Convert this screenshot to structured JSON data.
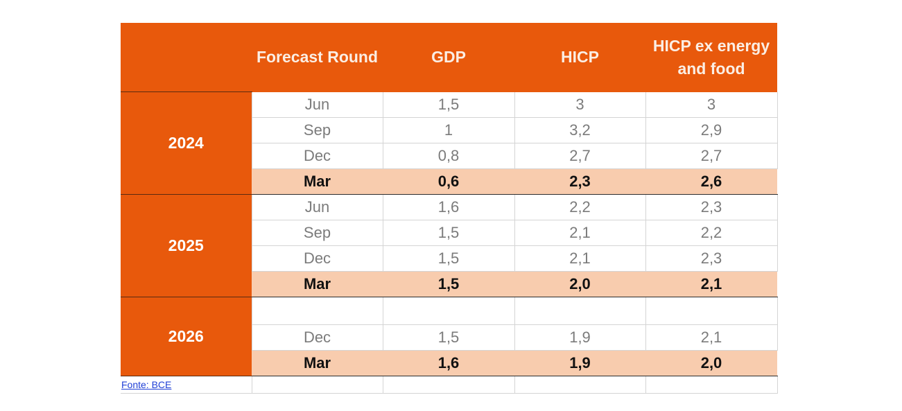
{
  "chart_data": {
    "type": "table",
    "columns": [
      "",
      "Forecast Round",
      "GDP",
      "HICP",
      "HICP ex energy and food"
    ],
    "groups": [
      {
        "year": "2024",
        "rows": [
          {
            "round": "Jun",
            "gdp": "1,5",
            "hicp": "3",
            "hicp_ex": "3",
            "highlight": false
          },
          {
            "round": "Sep",
            "gdp": "1",
            "hicp": "3,2",
            "hicp_ex": "2,9",
            "highlight": false
          },
          {
            "round": "Dec",
            "gdp": "0,8",
            "hicp": "2,7",
            "hicp_ex": "2,7",
            "highlight": false
          },
          {
            "round": "Mar",
            "gdp": "0,6",
            "hicp": "2,3",
            "hicp_ex": "2,6",
            "highlight": true
          }
        ]
      },
      {
        "year": "2025",
        "rows": [
          {
            "round": "Jun",
            "gdp": "1,6",
            "hicp": "2,2",
            "hicp_ex": "2,3",
            "highlight": false
          },
          {
            "round": "Sep",
            "gdp": "1,5",
            "hicp": "2,1",
            "hicp_ex": "2,2",
            "highlight": false
          },
          {
            "round": "Dec",
            "gdp": "1,5",
            "hicp": "2,1",
            "hicp_ex": "2,3",
            "highlight": false
          },
          {
            "round": "Mar",
            "gdp": "1,5",
            "hicp": "2,0",
            "hicp_ex": "2,1",
            "highlight": true
          }
        ]
      },
      {
        "year": "2026",
        "rows": [
          {
            "round": "",
            "gdp": "",
            "hicp": "",
            "hicp_ex": "",
            "highlight": false
          },
          {
            "round": "Dec",
            "gdp": "1,5",
            "hicp": "1,9",
            "hicp_ex": "2,1",
            "highlight": false
          },
          {
            "round": "Mar",
            "gdp": "1,6",
            "hicp": "1,9",
            "hicp_ex": "2,0",
            "highlight": true
          }
        ]
      }
    ],
    "source": "Fonte: BCE"
  },
  "colors": {
    "header_bg": "#e8590c",
    "highlight_bg": "#f8ccae",
    "link": "#1f3fd6"
  }
}
